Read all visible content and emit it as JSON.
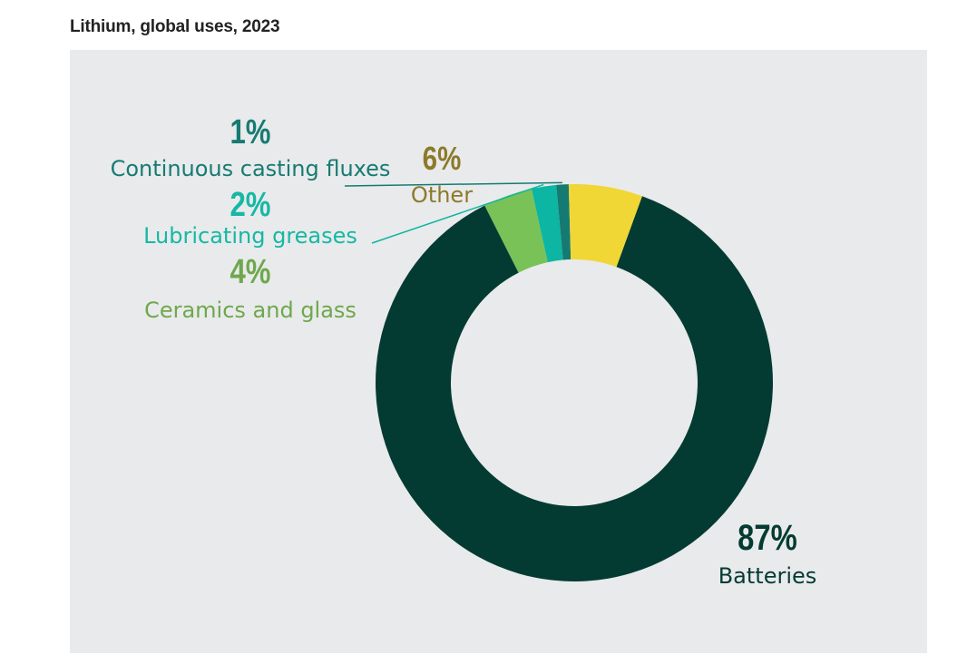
{
  "chart_data": {
    "type": "pie",
    "title": "Lithium, global uses, 2023",
    "donut": true,
    "slices": [
      {
        "label": "Batteries",
        "value": 87,
        "value_label": "87%",
        "color": "#033b33"
      },
      {
        "label": "Ceramics and glass",
        "value": 4,
        "value_label": "4%",
        "color": "#78c257"
      },
      {
        "label": "Lubricating greases",
        "value": 2,
        "value_label": "2%",
        "color": "#0db5a3"
      },
      {
        "label": "Continuous casting fluxes",
        "value": 1,
        "value_label": "1%",
        "color": "#157a72"
      },
      {
        "label": "Other",
        "value": 6,
        "value_label": "6%",
        "color": "#f0d736"
      }
    ],
    "label_colors": {
      "Batteries": "#033b33",
      "Ceramics and glass": "#6ea84c",
      "Lubricating greases": "#16b8a5",
      "Continuous casting fluxes": "#167b73",
      "Other": "#8c7a2a"
    },
    "background": "#e9eaeb"
  }
}
